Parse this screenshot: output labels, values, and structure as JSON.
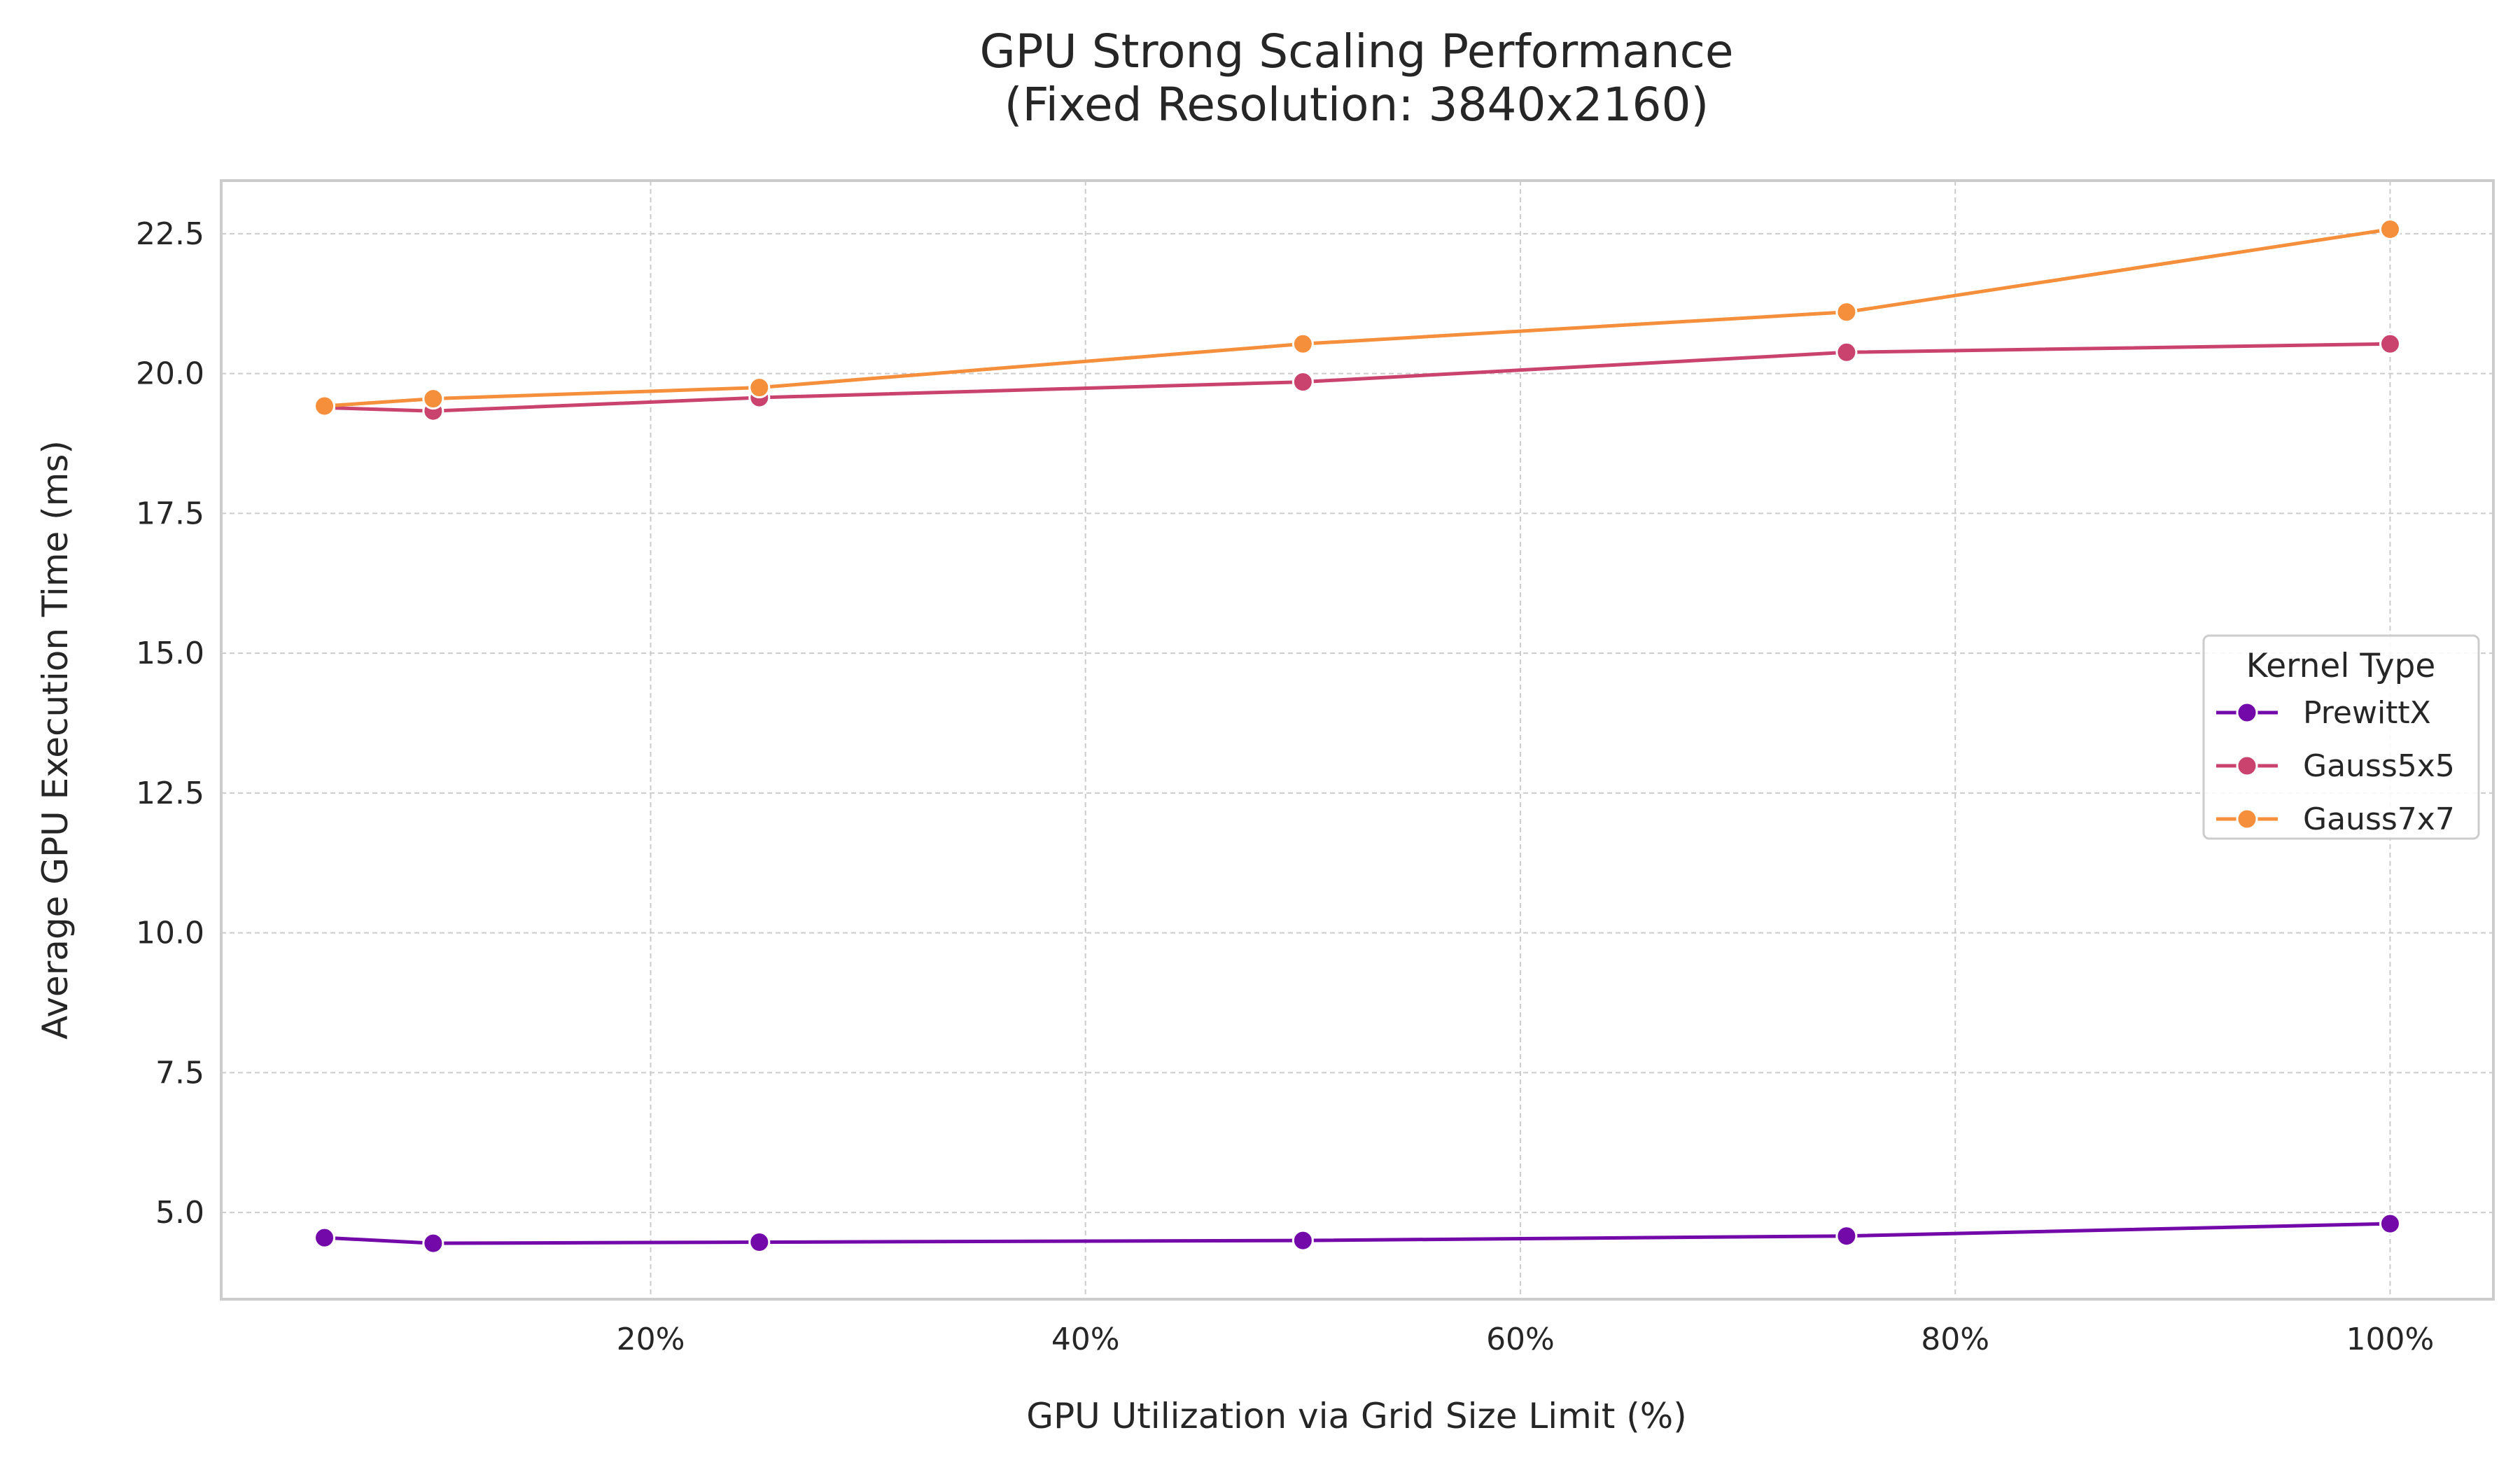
{
  "chart_data": {
    "type": "line",
    "title": "GPU Strong Scaling Performance\n(Fixed Resolution: 3840x2160)",
    "title_lines": [
      "GPU Strong Scaling Performance",
      "(Fixed Resolution: 3840x2160)"
    ],
    "xlabel": "GPU Utilization via Grid Size Limit (%)",
    "ylabel": "Average GPU Execution Time (ms)",
    "x": [
      5,
      10,
      25,
      50,
      75,
      100
    ],
    "xlim": [
      0.25,
      104.75
    ],
    "ylim": [
      3.45,
      23.45
    ],
    "x_ticks": [
      20,
      40,
      60,
      80,
      100
    ],
    "x_tick_labels": [
      "20%",
      "40%",
      "60%",
      "80%",
      "100%"
    ],
    "y_ticks": [
      5.0,
      7.5,
      10.0,
      12.5,
      15.0,
      17.5,
      20.0,
      22.5
    ],
    "y_tick_labels": [
      "5.0",
      "7.5",
      "10.0",
      "12.5",
      "15.0",
      "17.5",
      "20.0",
      "22.5"
    ],
    "grid": true,
    "legend": {
      "title": "Kernel Type",
      "placement": "center-right"
    },
    "series": [
      {
        "name": "PrewittX",
        "color": "#7209a8",
        "values": [
          4.55,
          4.45,
          4.47,
          4.5,
          4.58,
          4.8
        ]
      },
      {
        "name": "Gauss5x5",
        "color": "#c9436e",
        "values": [
          19.39,
          19.33,
          19.57,
          19.85,
          20.38,
          20.53
        ]
      },
      {
        "name": "Gauss7x7",
        "color": "#f58f3b",
        "values": [
          19.42,
          19.55,
          19.75,
          20.53,
          21.1,
          22.58
        ]
      }
    ]
  }
}
